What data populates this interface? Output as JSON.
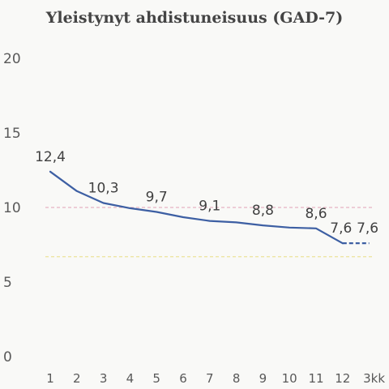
{
  "chart_data": {
    "type": "line",
    "title": "Yleistynyt ahdistuneisuus (GAD-7)",
    "xlabel": "",
    "ylabel": "",
    "ylim": [
      0,
      20
    ],
    "yticks": [
      "0",
      "5",
      "10",
      "15",
      "20"
    ],
    "categories": [
      "1",
      "2",
      "3",
      "4",
      "5",
      "6",
      "7",
      "8",
      "9",
      "10",
      "11",
      "12",
      "3kk"
    ],
    "series": [
      {
        "values": [
          12.4,
          11.1,
          10.3,
          9.95,
          9.7,
          9.35,
          9.1,
          9.0,
          8.8,
          8.65,
          8.6,
          7.6,
          7.6
        ],
        "color": "#3d5fa3",
        "dashed_last_segment": true
      }
    ],
    "data_labels": [
      {
        "index": 0,
        "text": "12,4"
      },
      {
        "index": 2,
        "text": "10,3"
      },
      {
        "index": 4,
        "text": "9,7"
      },
      {
        "index": 6,
        "text": "9,1"
      },
      {
        "index": 8,
        "text": "8,8"
      },
      {
        "index": 10,
        "text": "8,6"
      },
      {
        "index": 11,
        "text": "7,6"
      },
      {
        "index": 12,
        "text": "7,6"
      }
    ],
    "reference_lines": [
      {
        "y": 10,
        "color": "#e6b3c3",
        "style": "dashed"
      },
      {
        "y": 6.7,
        "color": "#ece49a",
        "style": "dashed"
      }
    ],
    "grid": false,
    "legend": "none"
  }
}
